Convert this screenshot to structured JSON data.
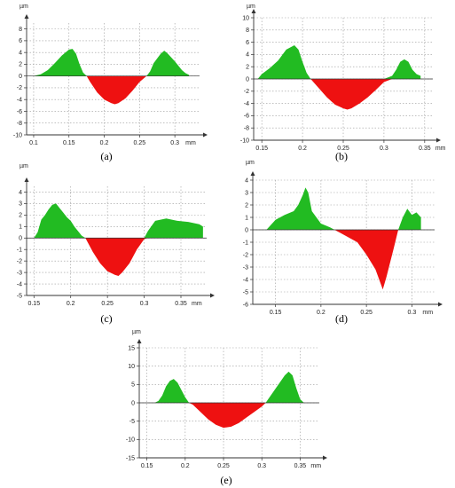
{
  "figure": {
    "colors": {
      "positive": "#22bb22",
      "negative": "#ee1111",
      "axis": "#333333",
      "grid": "#9a9a9a"
    }
  },
  "chart_data": [
    {
      "type": "area",
      "panel": "a",
      "caption": "(a)",
      "y_unit": "µm",
      "x_unit": "mm",
      "xlim": [
        0.09,
        0.335
      ],
      "ylim": [
        -10,
        9
      ],
      "x_ticks": [
        0.1,
        0.15,
        0.2,
        0.25,
        0.3
      ],
      "x_tick_labels": [
        "0.1",
        "0.15",
        "0.2",
        "0.25",
        "0.3"
      ],
      "y_ticks": [
        8,
        6,
        4,
        2,
        0,
        -2,
        -4,
        -6,
        -8,
        -10
      ],
      "profile": [
        [
          0.1,
          0
        ],
        [
          0.11,
          0.3
        ],
        [
          0.12,
          1.0
        ],
        [
          0.13,
          2.2
        ],
        [
          0.14,
          3.5
        ],
        [
          0.15,
          4.5
        ],
        [
          0.155,
          4.6
        ],
        [
          0.16,
          3.8
        ],
        [
          0.165,
          2.0
        ],
        [
          0.17,
          0.6
        ],
        [
          0.175,
          0
        ],
        [
          0.18,
          -1.0
        ],
        [
          0.19,
          -2.8
        ],
        [
          0.2,
          -4.0
        ],
        [
          0.21,
          -4.6
        ],
        [
          0.215,
          -4.8
        ],
        [
          0.22,
          -4.6
        ],
        [
          0.23,
          -3.8
        ],
        [
          0.24,
          -2.5
        ],
        [
          0.25,
          -1.0
        ],
        [
          0.26,
          0
        ],
        [
          0.265,
          0.8
        ],
        [
          0.27,
          2.2
        ],
        [
          0.28,
          3.8
        ],
        [
          0.285,
          4.3
        ],
        [
          0.29,
          3.8
        ],
        [
          0.3,
          2.5
        ],
        [
          0.31,
          1.0
        ],
        [
          0.315,
          0.5
        ],
        [
          0.32,
          0.2
        ]
      ]
    },
    {
      "type": "area",
      "panel": "b",
      "caption": "(b)",
      "y_unit": "µm",
      "x_unit": "mm",
      "xlim": [
        0.14,
        0.36
      ],
      "ylim": [
        -10,
        10
      ],
      "x_ticks": [
        0.15,
        0.2,
        0.25,
        0.3,
        0.35
      ],
      "x_tick_labels": [
        "0.15",
        "0.2",
        "0.25",
        "0.3",
        "0.35"
      ],
      "y_ticks": [
        10,
        8,
        6,
        4,
        2,
        0,
        -2,
        -4,
        -6,
        -8,
        -10
      ],
      "profile": [
        [
          0.145,
          0
        ],
        [
          0.15,
          0.8
        ],
        [
          0.16,
          1.8
        ],
        [
          0.17,
          3.0
        ],
        [
          0.18,
          4.8
        ],
        [
          0.19,
          5.5
        ],
        [
          0.195,
          4.8
        ],
        [
          0.2,
          2.8
        ],
        [
          0.205,
          1.0
        ],
        [
          0.21,
          0
        ],
        [
          0.22,
          -1.5
        ],
        [
          0.23,
          -3.0
        ],
        [
          0.24,
          -4.2
        ],
        [
          0.25,
          -4.8
        ],
        [
          0.255,
          -5.0
        ],
        [
          0.26,
          -4.8
        ],
        [
          0.27,
          -4.0
        ],
        [
          0.28,
          -3.0
        ],
        [
          0.29,
          -1.8
        ],
        [
          0.3,
          -0.5
        ],
        [
          0.31,
          0.5
        ],
        [
          0.315,
          1.5
        ],
        [
          0.32,
          2.8
        ],
        [
          0.325,
          3.2
        ],
        [
          0.33,
          2.8
        ],
        [
          0.335,
          1.5
        ],
        [
          0.34,
          0.8
        ],
        [
          0.345,
          0.5
        ]
      ]
    },
    {
      "type": "area",
      "panel": "c",
      "caption": "(c)",
      "y_unit": "µm",
      "x_unit": "mm",
      "xlim": [
        0.14,
        0.385
      ],
      "ylim": [
        -5,
        4.5
      ],
      "x_ticks": [
        0.15,
        0.2,
        0.25,
        0.3,
        0.35
      ],
      "x_tick_labels": [
        "0.15",
        "0.2",
        "0.25",
        "0.3",
        "0.35"
      ],
      "y_ticks": [
        4,
        3,
        2,
        1,
        0,
        -1,
        -2,
        -3,
        -4,
        -5
      ],
      "profile": [
        [
          0.15,
          0
        ],
        [
          0.155,
          0.5
        ],
        [
          0.16,
          1.6
        ],
        [
          0.165,
          2.0
        ],
        [
          0.17,
          2.5
        ],
        [
          0.175,
          2.9
        ],
        [
          0.18,
          3.0
        ],
        [
          0.185,
          2.6
        ],
        [
          0.19,
          2.2
        ],
        [
          0.195,
          1.8
        ],
        [
          0.2,
          1.5
        ],
        [
          0.205,
          1.0
        ],
        [
          0.21,
          0.6
        ],
        [
          0.215,
          0.2
        ],
        [
          0.22,
          0
        ],
        [
          0.225,
          -0.6
        ],
        [
          0.23,
          -1.2
        ],
        [
          0.24,
          -2.2
        ],
        [
          0.25,
          -2.9
        ],
        [
          0.26,
          -3.2
        ],
        [
          0.265,
          -3.3
        ],
        [
          0.27,
          -3.0
        ],
        [
          0.28,
          -2.2
        ],
        [
          0.29,
          -1.0
        ],
        [
          0.3,
          -0.1
        ],
        [
          0.305,
          0.6
        ],
        [
          0.315,
          1.5
        ],
        [
          0.33,
          1.7
        ],
        [
          0.345,
          1.5
        ],
        [
          0.36,
          1.4
        ],
        [
          0.375,
          1.2
        ],
        [
          0.38,
          1.0
        ]
      ]
    },
    {
      "type": "area",
      "panel": "d",
      "caption": "(d)",
      "y_unit": "µm",
      "x_unit": "mm",
      "xlim": [
        0.125,
        0.325
      ],
      "ylim": [
        -6,
        4
      ],
      "x_ticks": [
        0.15,
        0.2,
        0.25,
        0.3
      ],
      "x_tick_labels": [
        "0.15",
        "0.2",
        "0.25",
        "0.3"
      ],
      "y_ticks": [
        4,
        3,
        2,
        1,
        0,
        -1,
        -2,
        -3,
        -4,
        -5,
        -6
      ],
      "profile": [
        [
          0.14,
          0
        ],
        [
          0.15,
          0.8
        ],
        [
          0.16,
          1.2
        ],
        [
          0.17,
          1.5
        ],
        [
          0.175,
          2.0
        ],
        [
          0.18,
          2.8
        ],
        [
          0.183,
          3.4
        ],
        [
          0.186,
          3.0
        ],
        [
          0.19,
          1.5
        ],
        [
          0.2,
          0.5
        ],
        [
          0.21,
          0.2
        ],
        [
          0.215,
          0
        ],
        [
          0.22,
          -0.2
        ],
        [
          0.23,
          -0.6
        ],
        [
          0.24,
          -1.0
        ],
        [
          0.25,
          -2.0
        ],
        [
          0.26,
          -3.2
        ],
        [
          0.265,
          -4.2
        ],
        [
          0.268,
          -4.8
        ],
        [
          0.272,
          -3.8
        ],
        [
          0.28,
          -1.5
        ],
        [
          0.285,
          0
        ],
        [
          0.29,
          1.0
        ],
        [
          0.295,
          1.7
        ],
        [
          0.3,
          1.2
        ],
        [
          0.305,
          1.4
        ],
        [
          0.31,
          1.0
        ]
      ]
    },
    {
      "type": "area",
      "panel": "e",
      "caption": "(e)",
      "y_unit": "µm",
      "x_unit": "mm",
      "xlim": [
        0.14,
        0.375
      ],
      "ylim": [
        -15,
        15
      ],
      "x_ticks": [
        0.15,
        0.2,
        0.25,
        0.3,
        0.35
      ],
      "x_tick_labels": [
        "0.15",
        "0.2",
        "0.25",
        "0.3",
        "0.35"
      ],
      "y_ticks": [
        15,
        10,
        5,
        0,
        -5,
        -10,
        -15
      ],
      "profile": [
        [
          0.16,
          0
        ],
        [
          0.165,
          0.5
        ],
        [
          0.17,
          2.0
        ],
        [
          0.175,
          4.5
        ],
        [
          0.18,
          6.0
        ],
        [
          0.185,
          6.5
        ],
        [
          0.19,
          5.5
        ],
        [
          0.195,
          3.5
        ],
        [
          0.2,
          1.5
        ],
        [
          0.205,
          0
        ],
        [
          0.21,
          -0.5
        ],
        [
          0.22,
          -2.5
        ],
        [
          0.23,
          -4.5
        ],
        [
          0.24,
          -6.0
        ],
        [
          0.25,
          -6.8
        ],
        [
          0.26,
          -6.5
        ],
        [
          0.27,
          -5.5
        ],
        [
          0.28,
          -4.0
        ],
        [
          0.29,
          -2.5
        ],
        [
          0.3,
          -1.0
        ],
        [
          0.305,
          0
        ],
        [
          0.31,
          1.5
        ],
        [
          0.32,
          4.5
        ],
        [
          0.33,
          7.5
        ],
        [
          0.335,
          8.5
        ],
        [
          0.34,
          7.5
        ],
        [
          0.345,
          4.0
        ],
        [
          0.35,
          1.0
        ],
        [
          0.355,
          0
        ]
      ]
    }
  ]
}
